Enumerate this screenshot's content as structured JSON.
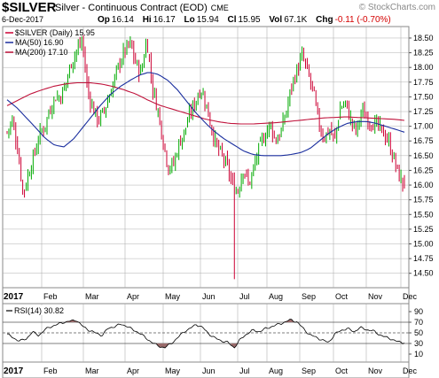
{
  "header": {
    "symbol": "$SILVER",
    "description": "Silver - Continuous Contract (EOD)",
    "exchange": "CME",
    "date": "6-Dec-2017",
    "open_label": "Op",
    "open": "16.14",
    "high_label": "Hi",
    "high": "16.17",
    "low_label": "Lo",
    "low": "15.94",
    "close_label": "Cl",
    "close": "15.95",
    "volume_label": "Vol",
    "volume": "67.1K",
    "change_label": "Chg",
    "change": "-0.11 (-0.70%)",
    "change_color": "#d40000",
    "watermark": "© StockCharts.com"
  },
  "legend": {
    "price": "$SILVER (Daily) 15.95",
    "ma50": "MA(50) 16.90",
    "ma200": "MA(200) 17.10"
  },
  "rsi_label": "RSI(14) 30.82",
  "colors": {
    "up": "#00aa00",
    "down": "#cc0033",
    "ma50": "#1a2e9e",
    "ma200": "#c0143c",
    "rsi_fill": "#9a6b6b",
    "grid": "#b0b0b0"
  },
  "chart_data": [
    {
      "type": "candlestick",
      "title": "$SILVER (Daily) 15.95",
      "months": [
        "2017",
        "Feb",
        "Mar",
        "Apr",
        "May",
        "Jun",
        "Jul",
        "Aug",
        "Sep",
        "Oct",
        "Nov",
        "Dec"
      ],
      "yticks": [
        "14.50",
        "14.75",
        "15.00",
        "15.25",
        "15.50",
        "15.75",
        "16.00",
        "16.25",
        "16.50",
        "16.75",
        "17.00",
        "17.25",
        "17.50",
        "17.75",
        "18.00",
        "18.25",
        "18.50"
      ],
      "ylim": [
        14.3,
        18.65
      ],
      "closes": [
        16.9,
        17.1,
        16.6,
        15.85,
        16.2,
        16.5,
        16.85,
        17.0,
        17.3,
        17.5,
        17.5,
        17.75,
        18.1,
        18.3,
        18.45,
        17.6,
        17.3,
        17.1,
        17.25,
        17.5,
        17.8,
        18.1,
        18.3,
        18.4,
        18.05,
        17.9,
        18.5,
        17.7,
        17.3,
        16.8,
        16.3,
        16.35,
        16.7,
        16.9,
        17.2,
        17.4,
        17.65,
        17.4,
        17.0,
        16.65,
        16.5,
        16.3,
        16.0,
        15.9,
        16.3,
        16.0,
        16.3,
        16.65,
        16.85,
        17.05,
        16.75,
        16.9,
        17.25,
        17.7,
        17.95,
        18.2,
        17.9,
        17.6,
        17.05,
        16.8,
        16.95,
        16.75,
        17.3,
        17.4,
        17.1,
        16.9,
        17.25,
        17.15,
        17.05,
        17.0,
        16.9,
        16.75,
        16.45,
        16.15,
        15.95
      ],
      "ma50": [
        17.45,
        17.32,
        17.15,
        16.98,
        16.8,
        16.68,
        16.65,
        16.78,
        16.98,
        17.18,
        17.38,
        17.55,
        17.68,
        17.78,
        17.87,
        17.92,
        17.88,
        17.78,
        17.62,
        17.42,
        17.22,
        17.05,
        16.9,
        16.78,
        16.68,
        16.58,
        16.52,
        16.5,
        16.5,
        16.5,
        16.52,
        16.55,
        16.62,
        16.75,
        16.88,
        16.98,
        17.05,
        17.08,
        17.08,
        17.05,
        17.0,
        16.95,
        16.9
      ],
      "ma200": [
        17.35,
        17.45,
        17.55,
        17.62,
        17.68,
        17.72,
        17.74,
        17.74,
        17.72,
        17.68,
        17.62,
        17.55,
        17.45,
        17.36,
        17.3,
        17.24,
        17.18,
        17.12,
        17.08,
        17.05,
        17.04,
        17.04,
        17.05,
        17.06,
        17.08,
        17.1,
        17.12,
        17.14,
        17.15,
        17.16,
        17.15,
        17.14,
        17.13,
        17.12,
        17.1
      ],
      "low_spike": 14.4
    },
    {
      "type": "line",
      "title": "RSI(14) 30.82",
      "yticks": [
        "10",
        "30",
        "50",
        "70",
        "90"
      ],
      "ylim": [
        0,
        100
      ],
      "reference_lines": [
        30,
        50,
        70
      ],
      "values": [
        48,
        40,
        35,
        38,
        52,
        45,
        56,
        62,
        66,
        70,
        72,
        74,
        62,
        55,
        50,
        45,
        58,
        62,
        66,
        63,
        55,
        50,
        40,
        32,
        25,
        22,
        30,
        40,
        52,
        58,
        66,
        60,
        48,
        40,
        35,
        32,
        22,
        38,
        48,
        55,
        52,
        58,
        62,
        66,
        70,
        75,
        70,
        58,
        46,
        42,
        36,
        32,
        48,
        55,
        58,
        52,
        60,
        56,
        54,
        47,
        42,
        38,
        33,
        30.82
      ]
    }
  ]
}
